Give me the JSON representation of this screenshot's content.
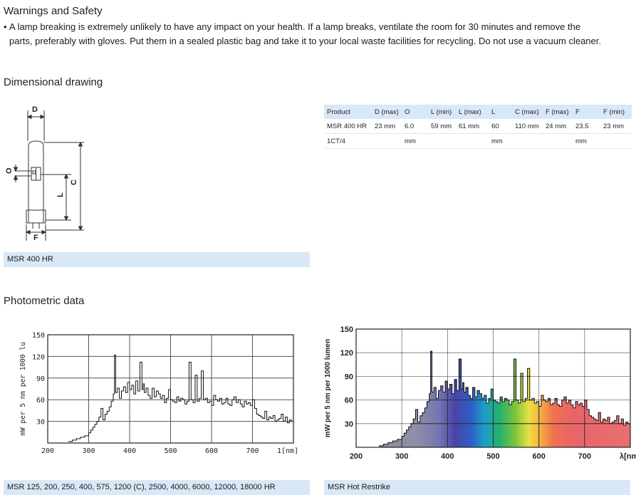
{
  "warnings": {
    "title": "Warnings and Safety",
    "bullet": "•",
    "text": "A lamp breaking is extremely unlikely to have any impact on your health. If a lamp breaks, ventilate the room for 30 minutes and remove the parts, preferably with gloves. Put them in a sealed plastic bag and take it to your local waste facilities for recycling. Do not use a vacuum cleaner."
  },
  "dimensional": {
    "title": "Dimensional drawing",
    "drawing_labels": {
      "d": "D",
      "o": "O",
      "l": "L",
      "c": "C",
      "f": "F"
    },
    "caption": "MSR 400 HR",
    "table": {
      "headers": [
        "Product",
        "D (max)",
        "O",
        "L (min)",
        "L (max)",
        "L",
        "C (max)",
        "F (max)",
        "F",
        "F (min)"
      ],
      "rows": [
        [
          "MSR 400 HR",
          "23 mm",
          "6.0",
          "59 mm",
          "61 mm",
          "60",
          "110 mm",
          "24 mm",
          "23.5",
          "23 mm"
        ],
        [
          "1CT/4",
          "",
          "mm",
          "",
          "",
          "mm",
          "",
          "",
          "mm",
          ""
        ]
      ]
    }
  },
  "photometric": {
    "title": "Photometric data",
    "left_caption": "MSR 125, 200, 250, 400, 575, 1200 (C), 2500, 4000, 6000, 12000, 18000 HR",
    "right_caption": "MSR Hot Restrike"
  },
  "chart_data": [
    {
      "type": "line",
      "title": "",
      "xlabel": "1[nm]",
      "ylabel": "mW per 5 nm per 1000 lu",
      "xlim": [
        200,
        800
      ],
      "ylim": [
        0,
        150
      ],
      "x_ticks": [
        "200",
        "300",
        "400",
        "500",
        "600",
        "700"
      ],
      "y_ticks": [
        "30",
        "60",
        "90",
        "120",
        "150"
      ],
      "grid": true,
      "series": [
        {
          "x": [
            250,
            260,
            270,
            280,
            290,
            300,
            305,
            310,
            315,
            320,
            325,
            330,
            335,
            340,
            345,
            350,
            355,
            360,
            363,
            366,
            370,
            375,
            380,
            385,
            390,
            395,
            400,
            405,
            410,
            415,
            420,
            425,
            430,
            433,
            436,
            440,
            445,
            450,
            455,
            460,
            465,
            470,
            475,
            480,
            485,
            490,
            495,
            500,
            505,
            510,
            515,
            520,
            525,
            530,
            535,
            540,
            545,
            550,
            555,
            560,
            565,
            570,
            575,
            580,
            585,
            590,
            595,
            600,
            605,
            610,
            615,
            620,
            625,
            630,
            635,
            640,
            645,
            650,
            655,
            660,
            665,
            670,
            675,
            680,
            685,
            690,
            695,
            700,
            705,
            710,
            715,
            720,
            725,
            730,
            735,
            740,
            745,
            750,
            755,
            760,
            765,
            770,
            775,
            780,
            785,
            790,
            795,
            800
          ],
          "y": [
            2,
            4,
            6,
            8,
            10,
            14,
            18,
            22,
            26,
            30,
            36,
            48,
            32,
            40,
            44,
            50,
            58,
            68,
            122,
            70,
            76,
            62,
            72,
            78,
            70,
            84,
            74,
            80,
            68,
            86,
            72,
            112,
            74,
            82,
            70,
            76,
            66,
            62,
            76,
            64,
            72,
            68,
            62,
            66,
            56,
            62,
            74,
            60,
            58,
            56,
            64,
            58,
            62,
            60,
            54,
            58,
            112,
            60,
            56,
            94,
            58,
            62,
            100,
            60,
            62,
            56,
            58,
            52,
            66,
            60,
            58,
            62,
            54,
            56,
            62,
            54,
            52,
            60,
            64,
            56,
            60,
            54,
            50,
            58,
            54,
            56,
            52,
            60,
            48,
            40,
            38,
            36,
            34,
            44,
            32,
            36,
            34,
            38,
            30,
            32,
            34,
            40,
            30,
            36,
            28,
            32,
            30,
            28
          ]
        }
      ]
    },
    {
      "type": "area",
      "title": "",
      "xlabel": "λ[nm]",
      "ylabel": "mW per 5 nm per 1000 lumen",
      "xlim": [
        200,
        800
      ],
      "ylim": [
        0,
        150
      ],
      "x_ticks": [
        "200",
        "300",
        "400",
        "500",
        "600",
        "700",
        "λ[nm]"
      ],
      "y_ticks": [
        "30",
        "60",
        "90",
        "120",
        "150"
      ],
      "grid": true,
      "series": [
        {
          "x": [
            250,
            260,
            270,
            280,
            290,
            300,
            305,
            310,
            315,
            320,
            325,
            330,
            335,
            340,
            345,
            350,
            355,
            360,
            363,
            366,
            370,
            375,
            380,
            385,
            390,
            395,
            400,
            405,
            410,
            415,
            420,
            425,
            430,
            433,
            436,
            440,
            445,
            450,
            455,
            460,
            465,
            470,
            475,
            480,
            485,
            490,
            495,
            500,
            505,
            510,
            515,
            520,
            525,
            530,
            535,
            540,
            545,
            550,
            555,
            560,
            565,
            570,
            575,
            580,
            585,
            590,
            595,
            600,
            605,
            610,
            615,
            620,
            625,
            630,
            635,
            640,
            645,
            650,
            655,
            660,
            665,
            670,
            675,
            680,
            685,
            690,
            695,
            700,
            705,
            710,
            715,
            720,
            725,
            730,
            735,
            740,
            745,
            750,
            755,
            760,
            765,
            770,
            775,
            780,
            785,
            790,
            795,
            800
          ],
          "y": [
            2,
            4,
            6,
            8,
            10,
            14,
            18,
            22,
            26,
            30,
            36,
            48,
            32,
            40,
            44,
            50,
            58,
            68,
            122,
            70,
            76,
            62,
            72,
            78,
            70,
            84,
            74,
            80,
            68,
            86,
            72,
            112,
            74,
            82,
            70,
            76,
            66,
            62,
            76,
            64,
            72,
            68,
            62,
            66,
            56,
            62,
            74,
            60,
            58,
            56,
            64,
            58,
            62,
            60,
            54,
            58,
            112,
            60,
            56,
            94,
            58,
            62,
            100,
            60,
            62,
            56,
            58,
            52,
            66,
            60,
            58,
            62,
            54,
            56,
            62,
            54,
            52,
            60,
            64,
            56,
            60,
            54,
            50,
            58,
            54,
            56,
            52,
            60,
            48,
            40,
            38,
            36,
            34,
            44,
            32,
            36,
            34,
            38,
            30,
            32,
            34,
            40,
            30,
            36,
            28,
            32,
            30,
            28
          ]
        }
      ]
    }
  ]
}
